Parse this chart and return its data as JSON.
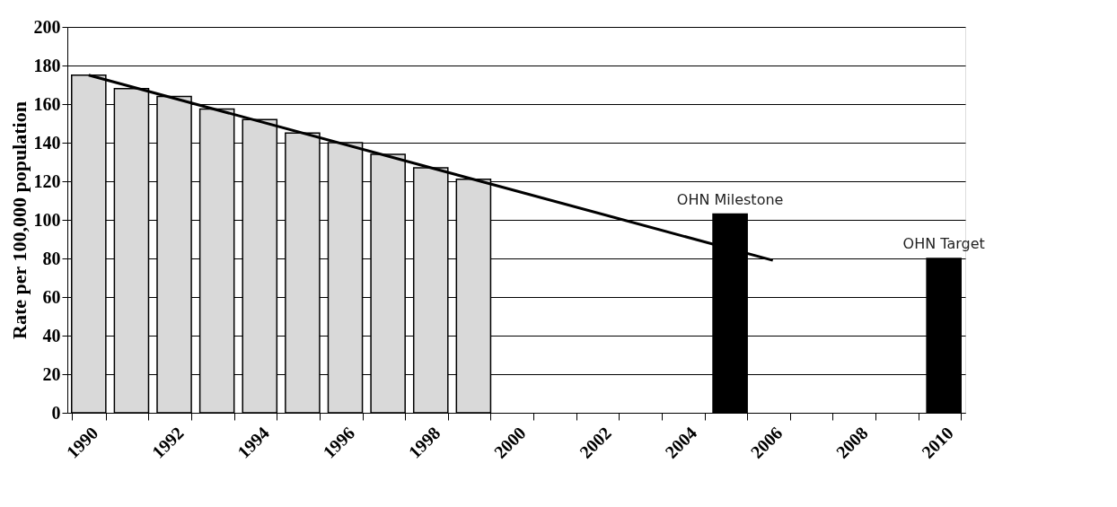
{
  "chart_data": {
    "type": "bar",
    "ylabel": "Rate per 100,000 population",
    "categories": [
      "1990",
      null,
      "1992",
      null,
      "1994",
      null,
      "1996",
      null,
      "1998",
      null,
      "2000",
      null,
      "2002",
      null,
      "2004",
      null,
      "2006",
      null,
      "2008",
      null,
      "2010"
    ],
    "series": [
      {
        "values": [
          175,
          168,
          164,
          157.5,
          152,
          145,
          140,
          134,
          127,
          121,
          null,
          null,
          null,
          null,
          null,
          103,
          null,
          null,
          null,
          null,
          80
        ],
        "colors": [
          "#d9d9d9",
          "#d9d9d9",
          "#d9d9d9",
          "#d9d9d9",
          "#d9d9d9",
          "#d9d9d9",
          "#d9d9d9",
          "#d9d9d9",
          "#d9d9d9",
          "#d9d9d9",
          null,
          null,
          null,
          null,
          null,
          "#000000",
          null,
          null,
          null,
          null,
          "#000000"
        ],
        "value_labels": [
          null,
          null,
          null,
          null,
          null,
          null,
          null,
          null,
          null,
          null,
          null,
          null,
          null,
          null,
          null,
          "OHN Milestone",
          null,
          null,
          null,
          null,
          "OHN Target"
        ]
      },
      {
        "type": "line",
        "color": "#000000",
        "values": [
          175,
          null,
          null,
          null,
          null,
          null,
          null,
          null,
          null,
          null,
          null,
          null,
          null,
          null,
          null,
          null,
          79,
          null,
          null,
          null,
          null
        ]
      }
    ],
    "ylim": [
      0,
      200
    ],
    "yticks": [
      0,
      20,
      40,
      60,
      80,
      100,
      120,
      140,
      160,
      180,
      200
    ],
    "grid": "y"
  }
}
